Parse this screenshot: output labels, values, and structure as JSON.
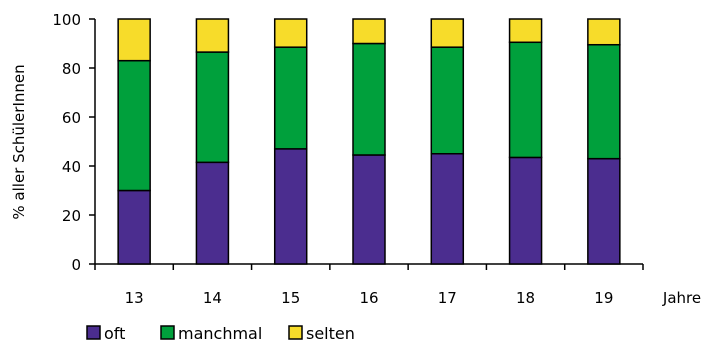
{
  "chart_data": {
    "type": "bar",
    "stacked": true,
    "categories": [
      "13",
      "14",
      "15",
      "16",
      "17",
      "18",
      "19"
    ],
    "x_suffix_label": "Jahre",
    "ylabel": "% aller SchülerInnen",
    "ylim": [
      0,
      100
    ],
    "yticks": [
      0,
      20,
      40,
      60,
      80,
      100
    ],
    "grid": false,
    "legend_position": "bottom",
    "series": [
      {
        "name": "oft",
        "color": "#4b2d8f",
        "values": [
          30,
          41.5,
          47,
          44.5,
          45,
          43.5,
          43
        ]
      },
      {
        "name": "manchmal",
        "color": "#00a03c",
        "values": [
          53,
          45,
          41.5,
          45.5,
          43.5,
          47,
          46.5
        ]
      },
      {
        "name": "selten",
        "color": "#f7dc2a",
        "values": [
          17,
          13.5,
          11.5,
          10,
          11.5,
          9.5,
          10.5
        ]
      }
    ]
  }
}
